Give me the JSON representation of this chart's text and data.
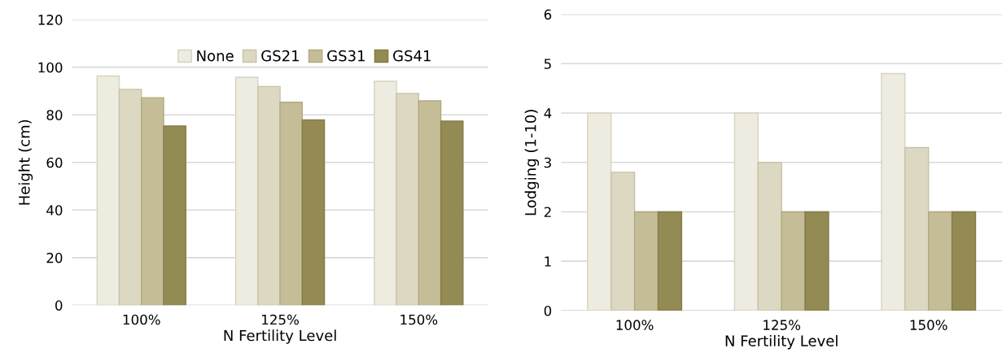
{
  "chart_data": [
    {
      "type": "bar",
      "ylabel": "Height (cm)",
      "xlabel": "N Fertility Level",
      "categories": [
        "100%",
        "125%",
        "150%"
      ],
      "ylim": [
        0,
        120
      ],
      "yticks": [
        0,
        20,
        40,
        60,
        80,
        100,
        120
      ],
      "grid": "y",
      "legend": "top",
      "series": [
        {
          "name": "None",
          "color": "#eeebe0",
          "values": [
            96.3,
            95.8,
            94.1
          ]
        },
        {
          "name": "GS21",
          "color": "#ddd8c2",
          "values": [
            90.7,
            91.9,
            89.0
          ]
        },
        {
          "name": "GS31",
          "color": "#c4bd97",
          "values": [
            87.2,
            85.3,
            85.9
          ]
        },
        {
          "name": "GS41",
          "color": "#948a54",
          "values": [
            75.3,
            77.9,
            77.4
          ]
        }
      ]
    },
    {
      "type": "bar",
      "ylabel": "Lodging (1-10)",
      "xlabel": "N Fertility Level",
      "categories": [
        "100%",
        "125%",
        "150%"
      ],
      "ylim": [
        0,
        6
      ],
      "yticks": [
        0,
        1,
        2,
        3,
        4,
        5,
        6
      ],
      "grid": "y",
      "series": [
        {
          "color": "#eeebe0",
          "values": [
            4.0,
            4.0,
            4.8
          ]
        },
        {
          "color": "#ddd8c2",
          "values": [
            2.8,
            3.0,
            3.3
          ]
        },
        {
          "color": "#c4bd97",
          "values": [
            2.0,
            2.0,
            2.0
          ]
        },
        {
          "color": "#948a54",
          "values": [
            2.0,
            2.0,
            2.0
          ]
        }
      ]
    }
  ]
}
